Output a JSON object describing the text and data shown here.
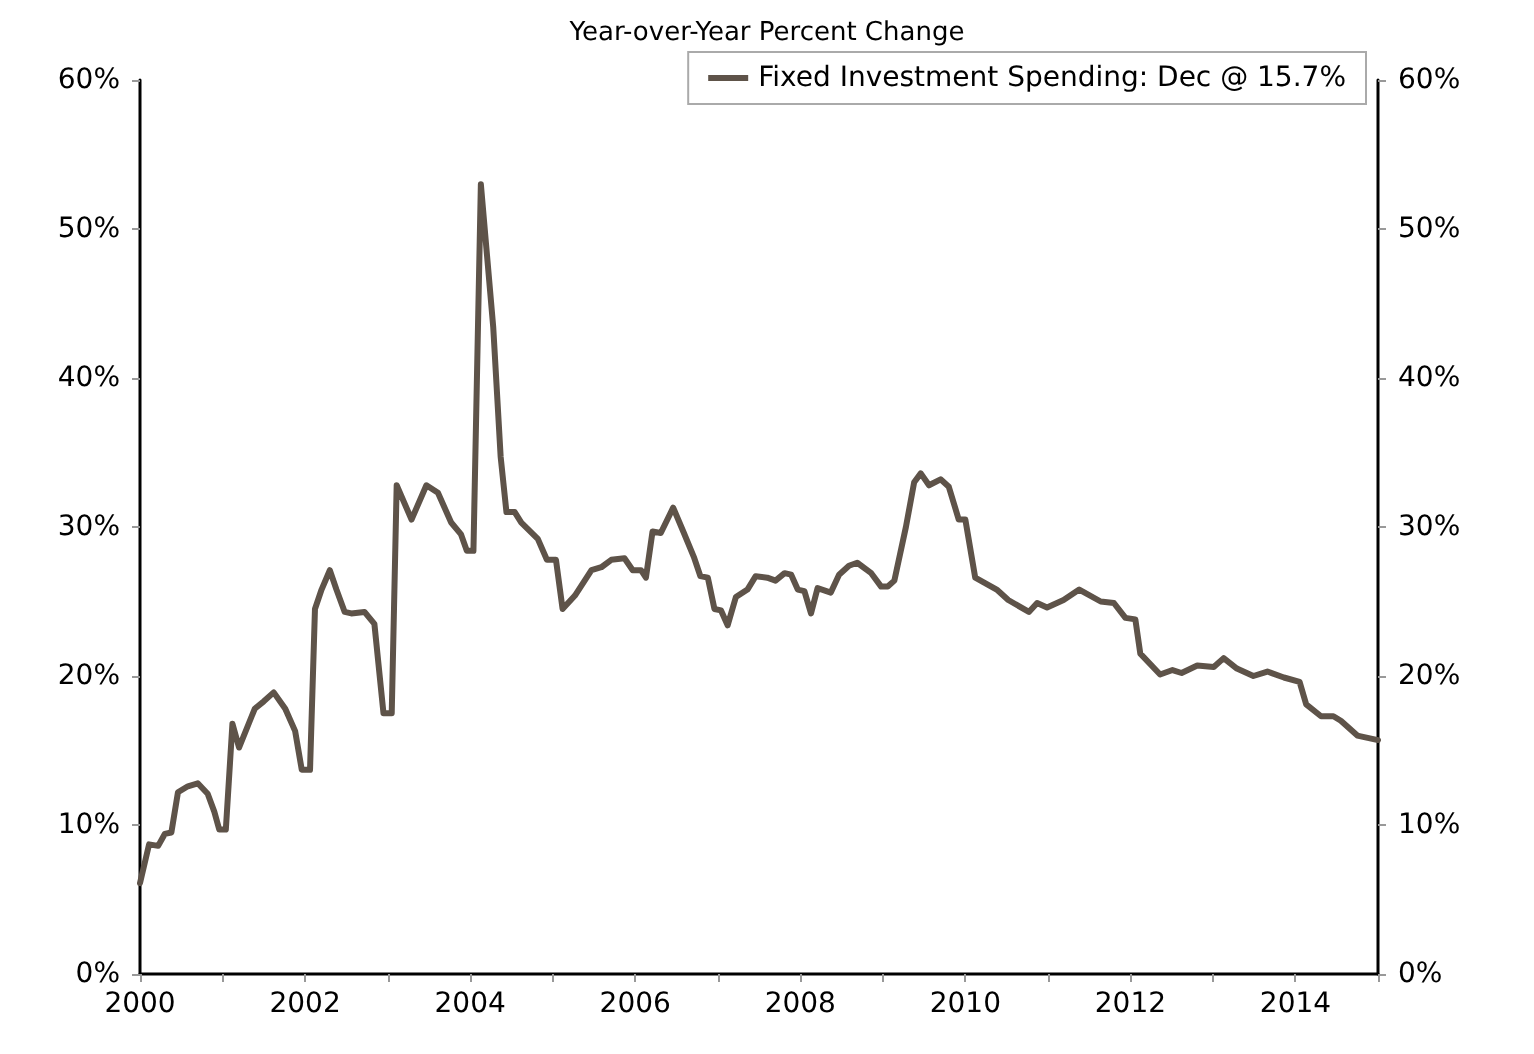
{
  "chart_data": {
    "type": "line",
    "subtitle": "Year-over-Year Percent Change",
    "x": [
      2000.0,
      2000.11,
      2000.22,
      2000.3,
      2000.38,
      2000.46,
      2000.58,
      2000.7,
      2000.82,
      2000.9,
      2000.96,
      2001.04,
      2001.12,
      2001.2,
      2001.39,
      2001.5,
      2001.62,
      2001.76,
      2001.88,
      2001.96,
      2002.06,
      2002.12,
      2002.2,
      2002.3,
      2002.38,
      2002.48,
      2002.56,
      2002.72,
      2002.84,
      2002.95,
      2003.05,
      2003.11,
      2003.29,
      2003.47,
      2003.61,
      2003.77,
      2003.89,
      2003.96,
      2004.04,
      2004.13,
      2004.28,
      2004.37,
      2004.44,
      2004.54,
      2004.62,
      2004.82,
      2004.93,
      2005.04,
      2005.12,
      2005.27,
      2005.47,
      2005.59,
      2005.71,
      2005.87,
      2005.97,
      2006.07,
      2006.13,
      2006.21,
      2006.31,
      2006.46,
      2006.59,
      2006.71,
      2006.79,
      2006.88,
      2006.96,
      2007.04,
      2007.12,
      2007.22,
      2007.36,
      2007.46,
      2007.6,
      2007.7,
      2007.81,
      2007.89,
      2007.97,
      2008.05,
      2008.13,
      2008.21,
      2008.37,
      2008.47,
      2008.59,
      2008.69,
      2008.86,
      2008.98,
      2009.06,
      2009.14,
      2009.28,
      2009.38,
      2009.46,
      2009.56,
      2009.7,
      2009.8,
      2009.92,
      2010.0,
      2010.12,
      2010.38,
      2010.52,
      2010.77,
      2010.87,
      2010.99,
      2011.19,
      2011.38,
      2011.64,
      2011.8,
      2011.94,
      2012.06,
      2012.12,
      2012.36,
      2012.51,
      2012.62,
      2012.81,
      2013.01,
      2013.13,
      2013.29,
      2013.49,
      2013.66,
      2013.86,
      2014.05,
      2014.13,
      2014.31,
      2014.46,
      2014.55,
      2014.75,
      2015.0
    ],
    "series": [
      {
        "name": "Fixed Investment Spending: Dec @ 15.7%",
        "color": "#5e5349",
        "values": [
          6.1,
          8.7,
          8.6,
          9.4,
          9.5,
          12.2,
          12.6,
          12.8,
          12.1,
          10.9,
          9.7,
          9.7,
          16.8,
          15.2,
          17.8,
          18.3,
          18.9,
          17.8,
          16.3,
          13.7,
          13.7,
          24.5,
          25.8,
          27.1,
          25.8,
          24.3,
          24.2,
          24.3,
          23.5,
          17.5,
          17.5,
          32.8,
          30.5,
          32.8,
          32.3,
          30.3,
          29.5,
          28.4,
          28.4,
          53.0,
          43.4,
          34.7,
          31.0,
          31.0,
          30.3,
          29.2,
          27.8,
          27.8,
          24.5,
          25.4,
          27.1,
          27.3,
          27.8,
          27.9,
          27.1,
          27.1,
          26.6,
          29.7,
          29.6,
          31.3,
          29.6,
          28.0,
          26.7,
          26.6,
          24.5,
          24.4,
          23.4,
          25.3,
          25.8,
          26.7,
          26.6,
          26.4,
          26.9,
          26.8,
          25.8,
          25.7,
          24.2,
          25.9,
          25.6,
          26.8,
          27.4,
          27.6,
          26.9,
          26.0,
          26.0,
          26.4,
          30.0,
          33.0,
          33.6,
          32.8,
          33.2,
          32.7,
          30.5,
          30.5,
          26.6,
          25.8,
          25.1,
          24.3,
          24.9,
          24.6,
          25.1,
          25.8,
          25.0,
          24.9,
          23.9,
          23.8,
          21.5,
          20.1,
          20.4,
          20.2,
          20.7,
          20.6,
          21.2,
          20.5,
          20.0,
          20.3,
          19.9,
          19.6,
          18.1,
          17.3,
          17.3,
          17.0,
          16.0,
          15.7
        ]
      }
    ],
    "xlim": [
      2000,
      2015
    ],
    "xticks": [
      2000,
      {
        "value": 2001,
        "label": null
      },
      2002,
      {
        "value": 2003,
        "label": null
      },
      2004,
      {
        "value": 2005,
        "label": null
      },
      2006,
      {
        "value": 2007,
        "label": null
      },
      2008,
      {
        "value": 2009,
        "label": null
      },
      2010,
      {
        "value": 2011,
        "label": null
      },
      2012,
      {
        "value": 2013,
        "label": null
      },
      2014,
      {
        "value": 2015,
        "label": null
      }
    ],
    "ylim": [
      0,
      60
    ],
    "yticks": [
      {
        "value": 0,
        "label": "0%"
      },
      {
        "value": 10,
        "label": "10%"
      },
      {
        "value": 20,
        "label": "20%"
      },
      {
        "value": 30,
        "label": "30%"
      },
      {
        "value": 40,
        "label": "40%"
      },
      {
        "value": 50,
        "label": "50%"
      },
      {
        "value": 60,
        "label": "60%"
      }
    ],
    "y2lim": [
      0,
      60
    ],
    "y2ticks": [
      {
        "value": 0,
        "label": "0%"
      },
      {
        "value": 10,
        "label": "10%"
      },
      {
        "value": 20,
        "label": "20%"
      },
      {
        "value": 30,
        "label": "30%"
      },
      {
        "value": 40,
        "label": "40%"
      },
      {
        "value": 50,
        "label": "50%"
      },
      {
        "value": 60,
        "label": "60%"
      }
    ],
    "legend": "top right",
    "grid": false,
    "marker": "none",
    "line_style": "solid"
  }
}
